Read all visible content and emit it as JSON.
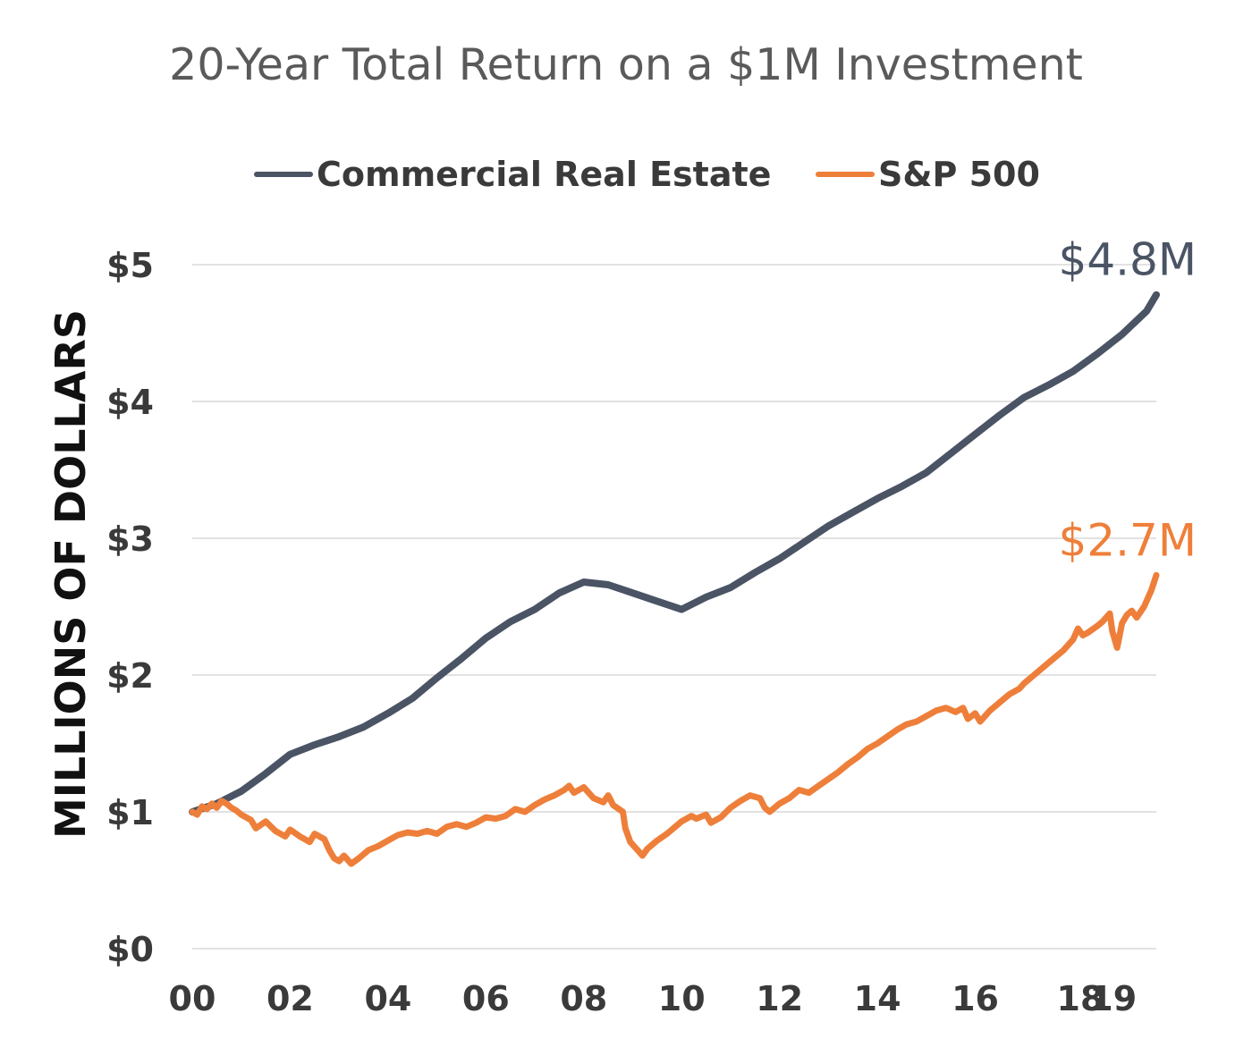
{
  "chart_data": {
    "type": "line",
    "title": "20-Year Total Return on a $1M Investment",
    "ylabel": "MILLIONS OF DOLLARS",
    "xlabel": "",
    "ylim": [
      0,
      5
    ],
    "xlim": [
      2000,
      2019.7
    ],
    "grid": true,
    "legend_position": "top",
    "y_ticks": [
      0,
      1,
      2,
      3,
      4,
      5
    ],
    "y_tick_labels": [
      "$0",
      "$1",
      "$2",
      "$3",
      "$4",
      "$5"
    ],
    "x_ticks": [
      2000,
      2002,
      2004,
      2006,
      2008,
      2010,
      2012,
      2014,
      2016,
      2018,
      2019
    ],
    "x_tick_labels": [
      "00",
      "02",
      "04",
      "06",
      "08",
      "10",
      "12",
      "14",
      "16",
      "18",
      "19"
    ],
    "series": [
      {
        "name": "Commercial Real Estate",
        "color": "#4a5464",
        "end_label": "$4.8M",
        "points": [
          [
            2000,
            1.0
          ],
          [
            2000.5,
            1.06
          ],
          [
            2001,
            1.15
          ],
          [
            2001.5,
            1.28
          ],
          [
            2002,
            1.42
          ],
          [
            2002.5,
            1.49
          ],
          [
            2003,
            1.55
          ],
          [
            2003.5,
            1.62
          ],
          [
            2004,
            1.72
          ],
          [
            2004.5,
            1.83
          ],
          [
            2005,
            1.98
          ],
          [
            2005.5,
            2.12
          ],
          [
            2006,
            2.27
          ],
          [
            2006.5,
            2.39
          ],
          [
            2007,
            2.48
          ],
          [
            2007.5,
            2.6
          ],
          [
            2008,
            2.68
          ],
          [
            2008.5,
            2.66
          ],
          [
            2009,
            2.6
          ],
          [
            2009.5,
            2.54
          ],
          [
            2010,
            2.48
          ],
          [
            2010.5,
            2.57
          ],
          [
            2011,
            2.64
          ],
          [
            2011.5,
            2.75
          ],
          [
            2012,
            2.85
          ],
          [
            2012.5,
            2.97
          ],
          [
            2013,
            3.09
          ],
          [
            2013.5,
            3.19
          ],
          [
            2014,
            3.29
          ],
          [
            2014.5,
            3.38
          ],
          [
            2015,
            3.48
          ],
          [
            2015.5,
            3.62
          ],
          [
            2016,
            3.76
          ],
          [
            2016.5,
            3.9
          ],
          [
            2017,
            4.03
          ],
          [
            2017.5,
            4.12
          ],
          [
            2018,
            4.22
          ],
          [
            2018.5,
            4.35
          ],
          [
            2019,
            4.49
          ],
          [
            2019.5,
            4.66
          ],
          [
            2019.7,
            4.78
          ]
        ]
      },
      {
        "name": "S&P 500",
        "color": "#ee7f3a",
        "end_label": "$2.7M",
        "points": [
          [
            2000,
            1.0
          ],
          [
            2000.1,
            0.98
          ],
          [
            2000.2,
            1.04
          ],
          [
            2000.3,
            1.02
          ],
          [
            2000.4,
            1.06
          ],
          [
            2000.5,
            1.03
          ],
          [
            2000.6,
            1.08
          ],
          [
            2000.7,
            1.06
          ],
          [
            2000.8,
            1.03
          ],
          [
            2000.9,
            1.01
          ],
          [
            2001,
            0.98
          ],
          [
            2001.2,
            0.94
          ],
          [
            2001.3,
            0.88
          ],
          [
            2001.5,
            0.93
          ],
          [
            2001.7,
            0.86
          ],
          [
            2001.9,
            0.82
          ],
          [
            2002,
            0.87
          ],
          [
            2002.2,
            0.82
          ],
          [
            2002.4,
            0.78
          ],
          [
            2002.5,
            0.84
          ],
          [
            2002.7,
            0.8
          ],
          [
            2002.8,
            0.72
          ],
          [
            2002.9,
            0.66
          ],
          [
            2003.0,
            0.64
          ],
          [
            2003.1,
            0.68
          ],
          [
            2003.25,
            0.62
          ],
          [
            2003.4,
            0.66
          ],
          [
            2003.6,
            0.72
          ],
          [
            2003.8,
            0.75
          ],
          [
            2004,
            0.79
          ],
          [
            2004.2,
            0.83
          ],
          [
            2004.4,
            0.85
          ],
          [
            2004.6,
            0.84
          ],
          [
            2004.8,
            0.86
          ],
          [
            2005,
            0.84
          ],
          [
            2005.2,
            0.89
          ],
          [
            2005.4,
            0.91
          ],
          [
            2005.6,
            0.89
          ],
          [
            2005.8,
            0.92
          ],
          [
            2006,
            0.96
          ],
          [
            2006.2,
            0.95
          ],
          [
            2006.4,
            0.97
          ],
          [
            2006.6,
            1.02
          ],
          [
            2006.8,
            1.0
          ],
          [
            2007,
            1.05
          ],
          [
            2007.2,
            1.09
          ],
          [
            2007.4,
            1.12
          ],
          [
            2007.6,
            1.16
          ],
          [
            2007.7,
            1.19
          ],
          [
            2007.8,
            1.14
          ],
          [
            2008,
            1.18
          ],
          [
            2008.2,
            1.1
          ],
          [
            2008.4,
            1.07
          ],
          [
            2008.5,
            1.12
          ],
          [
            2008.6,
            1.05
          ],
          [
            2008.8,
            1.0
          ],
          [
            2008.85,
            0.88
          ],
          [
            2008.95,
            0.78
          ],
          [
            2009.1,
            0.72
          ],
          [
            2009.2,
            0.68
          ],
          [
            2009.3,
            0.73
          ],
          [
            2009.5,
            0.79
          ],
          [
            2009.7,
            0.84
          ],
          [
            2009.9,
            0.9
          ],
          [
            2010,
            0.93
          ],
          [
            2010.2,
            0.97
          ],
          [
            2010.3,
            0.95
          ],
          [
            2010.5,
            0.98
          ],
          [
            2010.6,
            0.92
          ],
          [
            2010.8,
            0.96
          ],
          [
            2011,
            1.03
          ],
          [
            2011.2,
            1.08
          ],
          [
            2011.4,
            1.12
          ],
          [
            2011.6,
            1.1
          ],
          [
            2011.7,
            1.03
          ],
          [
            2011.8,
            1.0
          ],
          [
            2012,
            1.06
          ],
          [
            2012.2,
            1.1
          ],
          [
            2012.4,
            1.16
          ],
          [
            2012.6,
            1.14
          ],
          [
            2012.8,
            1.19
          ],
          [
            2013,
            1.24
          ],
          [
            2013.2,
            1.29
          ],
          [
            2013.4,
            1.35
          ],
          [
            2013.6,
            1.4
          ],
          [
            2013.8,
            1.46
          ],
          [
            2014,
            1.5
          ],
          [
            2014.2,
            1.55
          ],
          [
            2014.4,
            1.6
          ],
          [
            2014.6,
            1.64
          ],
          [
            2014.8,
            1.66
          ],
          [
            2015,
            1.7
          ],
          [
            2015.2,
            1.74
          ],
          [
            2015.4,
            1.76
          ],
          [
            2015.6,
            1.73
          ],
          [
            2015.75,
            1.76
          ],
          [
            2015.85,
            1.68
          ],
          [
            2016,
            1.72
          ],
          [
            2016.1,
            1.66
          ],
          [
            2016.3,
            1.74
          ],
          [
            2016.5,
            1.8
          ],
          [
            2016.7,
            1.86
          ],
          [
            2016.9,
            1.9
          ],
          [
            2017,
            1.94
          ],
          [
            2017.2,
            2.0
          ],
          [
            2017.4,
            2.06
          ],
          [
            2017.6,
            2.12
          ],
          [
            2017.8,
            2.18
          ],
          [
            2018,
            2.26
          ],
          [
            2018.1,
            2.34
          ],
          [
            2018.2,
            2.29
          ],
          [
            2018.3,
            2.31
          ],
          [
            2018.5,
            2.36
          ],
          [
            2018.6,
            2.39
          ],
          [
            2018.75,
            2.45
          ],
          [
            2018.8,
            2.32
          ],
          [
            2018.9,
            2.2
          ],
          [
            2019,
            2.38
          ],
          [
            2019.1,
            2.44
          ],
          [
            2019.2,
            2.47
          ],
          [
            2019.3,
            2.42
          ],
          [
            2019.45,
            2.5
          ],
          [
            2019.6,
            2.62
          ],
          [
            2019.7,
            2.73
          ]
        ]
      }
    ]
  }
}
